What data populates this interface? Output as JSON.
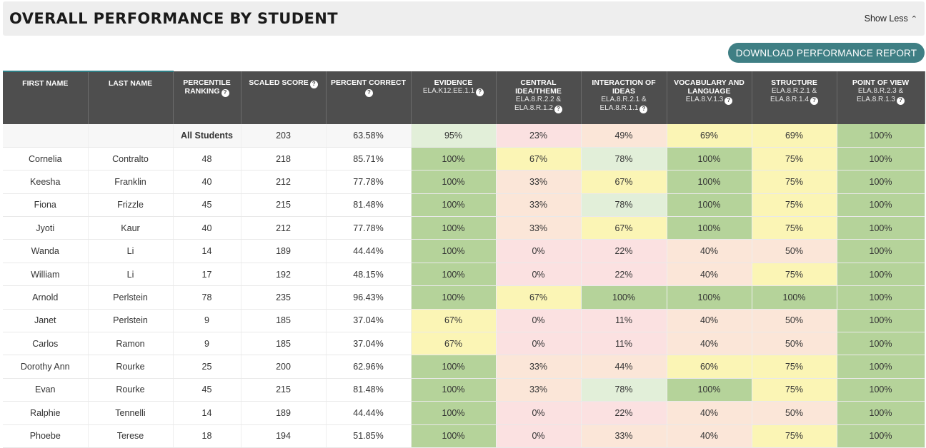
{
  "header": {
    "title": "OVERALL PERFORMANCE BY STUDENT",
    "toggle_label": "Show Less",
    "toggle_icon": "chevron-up-icon"
  },
  "actions": {
    "download_label": "DOWNLOAD PERFORMANCE REPORT",
    "download_color": "#3f7f84"
  },
  "table": {
    "columns": [
      {
        "label": "FIRST NAME",
        "sub": "",
        "help": false
      },
      {
        "label": "LAST NAME",
        "sub": "",
        "help": false
      },
      {
        "label": "PERCENTILE RANKING",
        "sub": "",
        "help": true
      },
      {
        "label": "SCALED SCORE",
        "sub": "",
        "help": true
      },
      {
        "label": "PERCENT CORRECT",
        "sub": "",
        "help": true
      },
      {
        "label": "EVIDENCE",
        "sub": "ELA.K12.EE.1.1",
        "help": true
      },
      {
        "label": "CENTRAL IDEA/THEME",
        "sub": "ELA.8.R.2.2 & ELA.8.R.1.2",
        "help": true
      },
      {
        "label": "INTERACTION OF IDEAS",
        "sub": "ELA.8.R.2.1 & ELA.8.R.1.1",
        "help": true
      },
      {
        "label": "VOCABULARY AND LANGUAGE",
        "sub": "ELA.8.V.1.3",
        "help": true
      },
      {
        "label": "STRUCTURE",
        "sub": "ELA.8.R.2.1 & ELA.8.R.1.4",
        "help": true
      },
      {
        "label": "POINT OF VIEW",
        "sub": "ELA.8.R.2.3 & ELA.8.R.1.3",
        "help": true
      }
    ],
    "summary_row": {
      "first": "",
      "last": "",
      "percentile": "All Students",
      "scaled": "203",
      "percent": "63.58%",
      "skills": [
        {
          "v": "95%",
          "lvl": "lgreen"
        },
        {
          "v": "23%",
          "lvl": "pink"
        },
        {
          "v": "49%",
          "lvl": "peach"
        },
        {
          "v": "69%",
          "lvl": "yellow"
        },
        {
          "v": "69%",
          "lvl": "yellow"
        },
        {
          "v": "100%",
          "lvl": "green"
        }
      ]
    },
    "rows": [
      {
        "first": "Cornelia",
        "last": "Contralto",
        "percentile": "48",
        "scaled": "218",
        "percent": "85.71%",
        "skills": [
          {
            "v": "100%",
            "lvl": "green"
          },
          {
            "v": "67%",
            "lvl": "yellow"
          },
          {
            "v": "78%",
            "lvl": "lgreen"
          },
          {
            "v": "100%",
            "lvl": "green"
          },
          {
            "v": "75%",
            "lvl": "yellow"
          },
          {
            "v": "100%",
            "lvl": "green"
          }
        ]
      },
      {
        "first": "Keesha",
        "last": "Franklin",
        "percentile": "40",
        "scaled": "212",
        "percent": "77.78%",
        "skills": [
          {
            "v": "100%",
            "lvl": "green"
          },
          {
            "v": "33%",
            "lvl": "peach"
          },
          {
            "v": "67%",
            "lvl": "yellow"
          },
          {
            "v": "100%",
            "lvl": "green"
          },
          {
            "v": "75%",
            "lvl": "yellow"
          },
          {
            "v": "100%",
            "lvl": "green"
          }
        ]
      },
      {
        "first": "Fiona",
        "last": "Frizzle",
        "percentile": "45",
        "scaled": "215",
        "percent": "81.48%",
        "skills": [
          {
            "v": "100%",
            "lvl": "green"
          },
          {
            "v": "33%",
            "lvl": "peach"
          },
          {
            "v": "78%",
            "lvl": "lgreen"
          },
          {
            "v": "100%",
            "lvl": "green"
          },
          {
            "v": "75%",
            "lvl": "yellow"
          },
          {
            "v": "100%",
            "lvl": "green"
          }
        ]
      },
      {
        "first": "Jyoti",
        "last": "Kaur",
        "percentile": "40",
        "scaled": "212",
        "percent": "77.78%",
        "skills": [
          {
            "v": "100%",
            "lvl": "green"
          },
          {
            "v": "33%",
            "lvl": "peach"
          },
          {
            "v": "67%",
            "lvl": "yellow"
          },
          {
            "v": "100%",
            "lvl": "green"
          },
          {
            "v": "75%",
            "lvl": "yellow"
          },
          {
            "v": "100%",
            "lvl": "green"
          }
        ]
      },
      {
        "first": "Wanda",
        "last": "Li",
        "percentile": "14",
        "scaled": "189",
        "percent": "44.44%",
        "skills": [
          {
            "v": "100%",
            "lvl": "green"
          },
          {
            "v": "0%",
            "lvl": "pink"
          },
          {
            "v": "22%",
            "lvl": "pink"
          },
          {
            "v": "40%",
            "lvl": "peach"
          },
          {
            "v": "50%",
            "lvl": "peach"
          },
          {
            "v": "100%",
            "lvl": "green"
          }
        ]
      },
      {
        "first": "William",
        "last": "Li",
        "percentile": "17",
        "scaled": "192",
        "percent": "48.15%",
        "skills": [
          {
            "v": "100%",
            "lvl": "green"
          },
          {
            "v": "0%",
            "lvl": "pink"
          },
          {
            "v": "22%",
            "lvl": "pink"
          },
          {
            "v": "40%",
            "lvl": "peach"
          },
          {
            "v": "75%",
            "lvl": "yellow"
          },
          {
            "v": "100%",
            "lvl": "green"
          }
        ]
      },
      {
        "first": "Arnold",
        "last": "Perlstein",
        "percentile": "78",
        "scaled": "235",
        "percent": "96.43%",
        "skills": [
          {
            "v": "100%",
            "lvl": "green"
          },
          {
            "v": "67%",
            "lvl": "yellow"
          },
          {
            "v": "100%",
            "lvl": "green"
          },
          {
            "v": "100%",
            "lvl": "green"
          },
          {
            "v": "100%",
            "lvl": "green"
          },
          {
            "v": "100%",
            "lvl": "green"
          }
        ]
      },
      {
        "first": "Janet",
        "last": "Perlstein",
        "percentile": "9",
        "scaled": "185",
        "percent": "37.04%",
        "skills": [
          {
            "v": "67%",
            "lvl": "yellow"
          },
          {
            "v": "0%",
            "lvl": "pink"
          },
          {
            "v": "11%",
            "lvl": "pink"
          },
          {
            "v": "40%",
            "lvl": "peach"
          },
          {
            "v": "50%",
            "lvl": "peach"
          },
          {
            "v": "100%",
            "lvl": "green"
          }
        ]
      },
      {
        "first": "Carlos",
        "last": "Ramon",
        "percentile": "9",
        "scaled": "185",
        "percent": "37.04%",
        "skills": [
          {
            "v": "67%",
            "lvl": "yellow"
          },
          {
            "v": "0%",
            "lvl": "pink"
          },
          {
            "v": "11%",
            "lvl": "pink"
          },
          {
            "v": "40%",
            "lvl": "peach"
          },
          {
            "v": "50%",
            "lvl": "peach"
          },
          {
            "v": "100%",
            "lvl": "green"
          }
        ]
      },
      {
        "first": "Dorothy Ann",
        "last": "Rourke",
        "percentile": "25",
        "scaled": "200",
        "percent": "62.96%",
        "skills": [
          {
            "v": "100%",
            "lvl": "green"
          },
          {
            "v": "33%",
            "lvl": "peach"
          },
          {
            "v": "44%",
            "lvl": "peach"
          },
          {
            "v": "60%",
            "lvl": "yellow"
          },
          {
            "v": "75%",
            "lvl": "yellow"
          },
          {
            "v": "100%",
            "lvl": "green"
          }
        ]
      },
      {
        "first": "Evan",
        "last": "Rourke",
        "percentile": "45",
        "scaled": "215",
        "percent": "81.48%",
        "skills": [
          {
            "v": "100%",
            "lvl": "green"
          },
          {
            "v": "33%",
            "lvl": "peach"
          },
          {
            "v": "78%",
            "lvl": "lgreen"
          },
          {
            "v": "100%",
            "lvl": "green"
          },
          {
            "v": "75%",
            "lvl": "yellow"
          },
          {
            "v": "100%",
            "lvl": "green"
          }
        ]
      },
      {
        "first": "Ralphie",
        "last": "Tennelli",
        "percentile": "14",
        "scaled": "189",
        "percent": "44.44%",
        "skills": [
          {
            "v": "100%",
            "lvl": "green"
          },
          {
            "v": "0%",
            "lvl": "pink"
          },
          {
            "v": "22%",
            "lvl": "pink"
          },
          {
            "v": "40%",
            "lvl": "peach"
          },
          {
            "v": "50%",
            "lvl": "peach"
          },
          {
            "v": "100%",
            "lvl": "green"
          }
        ]
      },
      {
        "first": "Phoebe",
        "last": "Terese",
        "percentile": "18",
        "scaled": "194",
        "percent": "51.85%",
        "skills": [
          {
            "v": "100%",
            "lvl": "green"
          },
          {
            "v": "0%",
            "lvl": "pink"
          },
          {
            "v": "33%",
            "lvl": "peach"
          },
          {
            "v": "40%",
            "lvl": "peach"
          },
          {
            "v": "75%",
            "lvl": "yellow"
          },
          {
            "v": "100%",
            "lvl": "green"
          }
        ]
      }
    ]
  },
  "colors": {
    "green": "#b5d39a",
    "lgreen": "#e2efd9",
    "yellow": "#fbf5b5",
    "peach": "#fbe6d8",
    "pink": "#fbe1e1",
    "header_bg": "#4e4e4e",
    "link": "#2e7a80"
  }
}
